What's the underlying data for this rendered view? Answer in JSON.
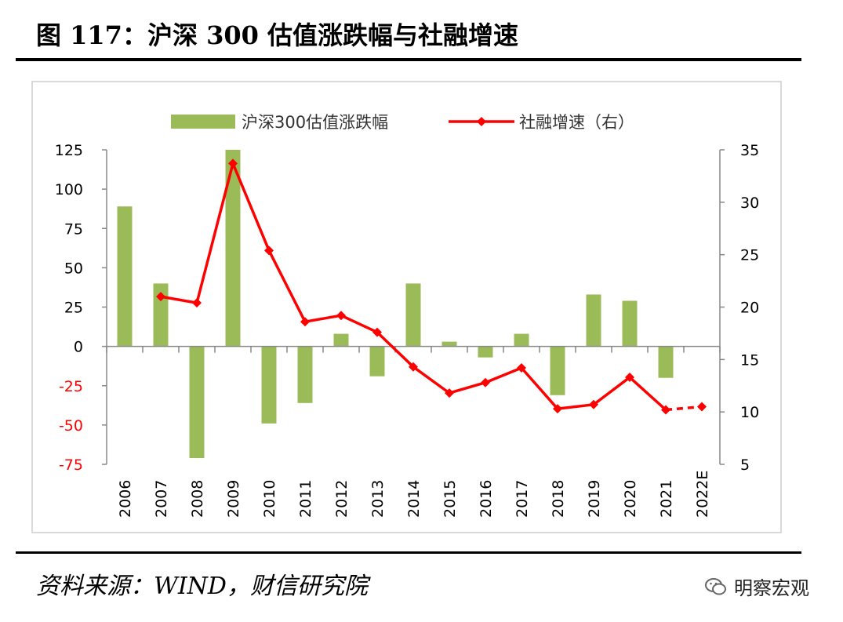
{
  "figure": {
    "title": "图 117：沪深 300 估值涨跌幅与社融增速",
    "source": "资料来源：WIND，财信研究院",
    "watermark": "明察宏观"
  },
  "colors": {
    "bar": "#9bbb59",
    "line": "#ff0000",
    "negative_tick": "#ff0000",
    "frame": "#d9d9d9"
  },
  "chart_data": {
    "type": "bar",
    "categories": [
      "2006",
      "2007",
      "2008",
      "2009",
      "2010",
      "2011",
      "2012",
      "2013",
      "2014",
      "2015",
      "2016",
      "2017",
      "2018",
      "2019",
      "2020",
      "2021",
      "2022E"
    ],
    "series": [
      {
        "name": "沪深300估值涨跌幅",
        "type": "bar",
        "axis": "left",
        "values": [
          89,
          40,
          -71,
          125,
          -49,
          -36,
          8,
          -19,
          40,
          3,
          -7,
          8,
          -31,
          33,
          29,
          -20,
          null
        ]
      },
      {
        "name": "社融增速（右）",
        "type": "line",
        "axis": "right",
        "values": [
          null,
          21.0,
          20.4,
          33.7,
          25.4,
          18.6,
          19.2,
          17.6,
          14.3,
          11.8,
          12.8,
          14.2,
          10.3,
          10.7,
          13.3,
          10.2,
          10.5
        ],
        "dashed_from": "2021"
      }
    ],
    "y_left": {
      "lim": [
        -75,
        125
      ],
      "ticks": [
        "125",
        "100",
        "75",
        "50",
        "25",
        "0",
        "-25",
        "-50",
        "-75"
      ]
    },
    "y_right": {
      "lim": [
        5,
        35
      ],
      "ticks": [
        "35",
        "30",
        "25",
        "20",
        "15",
        "10",
        "5"
      ]
    },
    "legend_position": "top",
    "grid": false
  }
}
